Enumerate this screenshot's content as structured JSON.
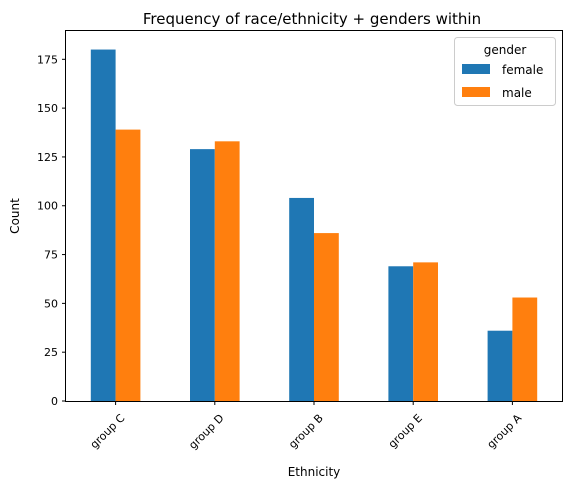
{
  "chart_data": {
    "type": "bar",
    "title": "Frequency of race/ethnicity + genders within",
    "xlabel": "Ethnicity",
    "ylabel": "Count",
    "categories": [
      "group C",
      "group D",
      "group B",
      "group E",
      "group A"
    ],
    "series": [
      {
        "name": "female",
        "color": "#1f77b4",
        "values": [
          180,
          129,
          104,
          69,
          36
        ]
      },
      {
        "name": "male",
        "color": "#ff7f0e",
        "values": [
          139,
          133,
          86,
          71,
          53
        ]
      }
    ],
    "ylim": [
      0,
      189.5
    ],
    "yticks": [
      0,
      25,
      50,
      75,
      100,
      125,
      150,
      175
    ],
    "legend": {
      "title": "gender",
      "placement": "top-right"
    },
    "grid": false
  }
}
